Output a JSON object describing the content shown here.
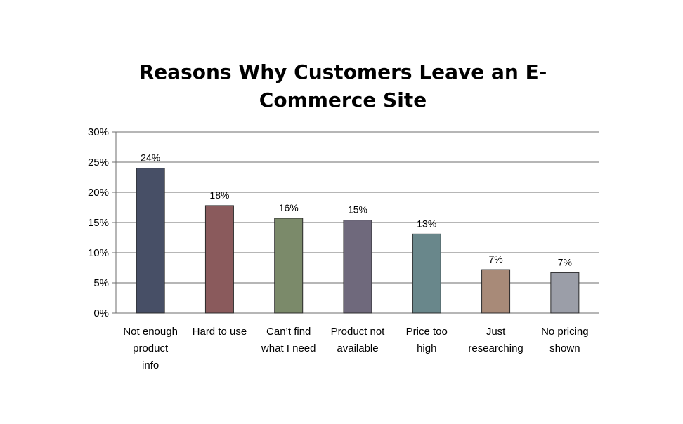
{
  "chart_data": {
    "type": "bar",
    "title_lines": [
      "Reasons Why Customers Leave an  E-",
      "Commerce Site"
    ],
    "categories": [
      [
        "Not enough",
        "product",
        "info"
      ],
      [
        "Hard to use"
      ],
      [
        "Can’t find",
        "what I need"
      ],
      [
        "Product not",
        "available"
      ],
      [
        "Price too",
        "high"
      ],
      [
        "Just",
        "researching"
      ],
      [
        "No pricing",
        "shown"
      ]
    ],
    "values": [
      24,
      18,
      16,
      15,
      13,
      7,
      7
    ],
    "plotted_values": [
      24,
      17.8,
      15.7,
      15.4,
      13.1,
      7.2,
      6.7
    ],
    "value_labels": [
      "24%",
      "18%",
      "16%",
      "15%",
      "13%",
      "7%",
      "7%"
    ],
    "bar_colors": [
      "#474f66",
      "#8a5a5c",
      "#7b8a6a",
      "#6f697c",
      "#69878b",
      "#a88a78",
      "#9b9ea8"
    ],
    "ylim": [
      0,
      30
    ],
    "yticks": [
      0,
      5,
      10,
      15,
      20,
      25,
      30
    ],
    "ytick_labels": [
      "0%",
      "5%",
      "10%",
      "15%",
      "20%",
      "25%",
      "30%"
    ],
    "xlabel": "",
    "ylabel": "",
    "grid": true,
    "legend": "none"
  }
}
